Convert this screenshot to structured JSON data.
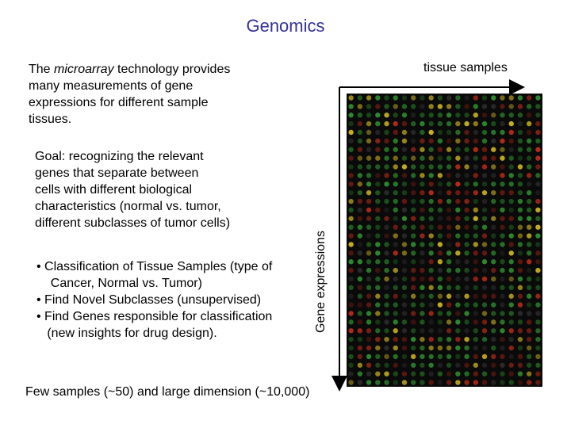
{
  "slide": {
    "title": "Genomics",
    "intro_lines": [
      "The microarray technology provides",
      "many measurements of gene",
      "expressions for different sample",
      "tissues."
    ],
    "goal_lines": [
      "Goal: recognizing the relevant",
      "genes that separate between",
      "cells with different biological",
      "characteristics (normal vs. tumor,",
      "different subclasses of tumor cells)"
    ],
    "bullets": [
      "• Classification of Tissue Samples (type of",
      "    Cancer, Normal vs. Tumor)",
      "• Find Novel Subclasses (unsupervised)",
      "• Find Genes responsible for classification",
      "   (new insights for drug design)."
    ],
    "footer": "Few samples (~50) and large dimension (~10,000)"
  },
  "figure": {
    "x_axis_label": "tissue samples",
    "y_axis_label": "Gene expressions",
    "colors": {
      "background": "#0a0a0a",
      "spot_green": "#2e8b2e",
      "spot_red": "#b52a1a",
      "spot_yellow": "#c8b020",
      "axis": "#000000"
    }
  }
}
